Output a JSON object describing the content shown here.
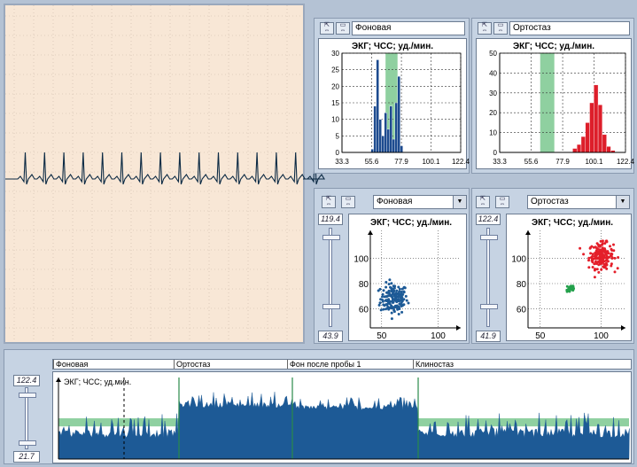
{
  "ecg_panel": {},
  "hist1": {
    "selector": "Фоновая",
    "chart_data": {
      "type": "bar",
      "title": "ЭКГ; ЧСС; уд./мин.",
      "x_ticks": [
        "33.3",
        "55.6",
        "77.9",
        "100.1",
        "122.4"
      ],
      "y_ticks": [
        "0",
        "5",
        "10",
        "15",
        "20",
        "25",
        "30"
      ],
      "ylim": [
        0,
        30
      ],
      "xlim": [
        33.3,
        122.4
      ],
      "bin_edges": [
        55,
        57,
        59,
        61,
        63,
        65,
        67,
        69,
        71,
        73,
        75,
        77,
        79
      ],
      "values": [
        1,
        14,
        28,
        10,
        5,
        12,
        7,
        14,
        4,
        15,
        23,
        2
      ],
      "highlight_range": [
        66,
        75
      ],
      "bar_color": "#1d4b8f",
      "highlight_color": "#8fd0a0"
    }
  },
  "hist2": {
    "selector": "Ортостаз",
    "chart_data": {
      "type": "bar",
      "title": "ЭКГ; ЧСС; уд./мин.",
      "x_ticks": [
        "33.3",
        "55.6",
        "77.9",
        "100.1",
        "122.4"
      ],
      "y_ticks": [
        "0",
        "10",
        "20",
        "30",
        "40",
        "50"
      ],
      "ylim": [
        0,
        50
      ],
      "xlim": [
        33.3,
        122.4
      ],
      "bin_edges": [
        85,
        88,
        91,
        94,
        97,
        100,
        103,
        106,
        109,
        112,
        115
      ],
      "values": [
        2,
        4,
        8,
        15,
        25,
        34,
        24,
        9,
        3,
        1
      ],
      "highlight_range": [
        62,
        72
      ],
      "bar_color": "#dd1e2a",
      "highlight_color": "#8fd0a0"
    }
  },
  "scatter1": {
    "selector": "Фоновая",
    "slider_top": "119.4",
    "slider_bottom": "43.9",
    "chart_data": {
      "type": "scatter",
      "title": "ЭКГ; ЧСС; уд./мин.",
      "x_ticks": [
        "50",
        "100"
      ],
      "y_ticks": [
        "60",
        "80",
        "100"
      ],
      "xlim": [
        40,
        120
      ],
      "ylim": [
        45,
        122
      ],
      "clusters": [
        {
          "cx": 61,
          "cy": 68,
          "sx": 6,
          "sy": 6,
          "n": 160,
          "color": "#1d5a96"
        }
      ]
    }
  },
  "scatter2": {
    "selector": "Ортостаз",
    "slider_top": "122.4",
    "slider_bottom": "41.9",
    "chart_data": {
      "type": "scatter",
      "title": "ЭКГ; ЧСС; уд./мин.",
      "x_ticks": [
        "50",
        "100"
      ],
      "y_ticks": [
        "60",
        "80",
        "100"
      ],
      "xlim": [
        40,
        120
      ],
      "ylim": [
        45,
        122
      ],
      "clusters": [
        {
          "cx": 100,
          "cy": 102,
          "sx": 5,
          "sy": 5,
          "n": 170,
          "color": "#e41f2a"
        },
        {
          "cx": 75,
          "cy": 76,
          "sx": 2,
          "sy": 2,
          "n": 25,
          "color": "#23a04b"
        }
      ]
    }
  },
  "trend": {
    "label": "ЭКГ; ЧСС; уд.мин.",
    "slider_top": "122.4",
    "slider_bottom": "21.7",
    "segments": [
      {
        "label": "Фоновая"
      },
      {
        "label": "Ортостаз"
      },
      {
        "label": "Фон после пробы 1"
      },
      {
        "label": "Клиностаз"
      }
    ],
    "chart_data": {
      "type": "area",
      "ylim": [
        21.7,
        122.4
      ],
      "segment_levels": [
        {
          "base": 48,
          "peak": 78
        },
        {
          "base": 85,
          "peak": 105
        },
        {
          "base": 82,
          "peak": 100
        },
        {
          "base": 48,
          "peak": 80
        }
      ],
      "band": [
        62,
        72
      ],
      "area_color": "#1d5a96",
      "band_color": "#8fd0a0"
    }
  }
}
